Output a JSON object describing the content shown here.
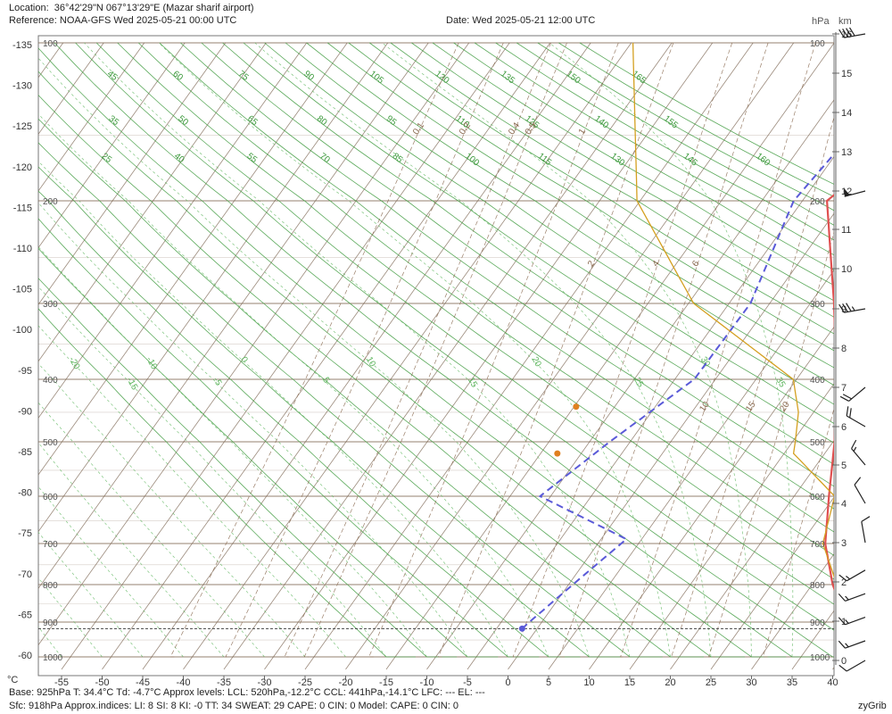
{
  "header": {
    "location_label": "Location:",
    "location_value": "36°42'29\"N  067°13'29\"E (Mazar sharif airport)",
    "reference_label": "Reference:",
    "reference_value": "NOAA-GFS Wed 2025-05-21 00:00 UTC",
    "date_text": "Date: Wed 2025-05-21 12:00 UTC",
    "unit_hpa": "hPa",
    "unit_km": "km"
  },
  "footer": {
    "line1": "Base: 925hPa  T: 34.4°C  Td: -4.7°C     Approx levels:  LCL: 520hPa,-12.2°C   CCL: 441hPa,-14.1°C   LFC: ---    EL: ---",
    "line2": "Sfc: 918hPa        Approx.indices:  LI: 8   SI: 8   KI: -0   TT: 34   SWEAT: 29    CAPE: 0  CIN: 0          Model: CAPE: 0 CIN: 0",
    "brand": "zyGrib",
    "x_unit": "°C"
  },
  "colors": {
    "temperature": "#e05050",
    "dewpoint": "#5a5ad8",
    "parcel": "#d4a020",
    "dry_adiabat": "#3f9b3f",
    "moist_adiabat": "#5fb65f",
    "isotherm": "#7a6450",
    "mixing_ratio": "#8a6a50",
    "isobar": "#8a7560",
    "marker": "#e08020"
  },
  "chart_data": {
    "type": "line",
    "title": "",
    "xlabel": "°C",
    "ylabel": "hPa",
    "x_ticks": [
      -55,
      -50,
      -45,
      -40,
      -35,
      -30,
      -25,
      -20,
      -15,
      -10,
      -5,
      0,
      5,
      10,
      15,
      20,
      25,
      30,
      35,
      40
    ],
    "left_axis_ticks": [
      -135,
      -130,
      -125,
      -120,
      -115,
      -110,
      -105,
      -100,
      -95,
      -90,
      -85,
      -80,
      -75,
      -70,
      -65,
      -60
    ],
    "pressure_levels": [
      100,
      200,
      300,
      400,
      500,
      600,
      700,
      800,
      900,
      1000
    ],
    "km_ticks": [
      0,
      1,
      2,
      3,
      4,
      5,
      6,
      7,
      8,
      9,
      10,
      11,
      12,
      13,
      14,
      15,
      16
    ],
    "dry_adiabat_labels": [
      -15,
      -10,
      -5,
      0,
      5,
      10,
      15,
      20,
      25,
      30,
      35,
      40,
      45,
      50,
      55,
      60,
      65,
      70,
      75,
      80,
      85,
      90,
      95,
      100,
      105,
      110,
      115,
      120,
      125,
      130,
      135,
      140,
      145,
      150,
      155,
      160,
      165
    ],
    "moist_adiabat_labels": [
      -55,
      -50,
      -45,
      -40,
      -35,
      -30,
      -25,
      -20,
      -15,
      -10,
      -5,
      0,
      5,
      10,
      15,
      20,
      25,
      30,
      35
    ],
    "mixing_ratio_labels": [
      0.1,
      0.2,
      0.4,
      0.5,
      1,
      2,
      4,
      6,
      10,
      15,
      20,
      30
    ],
    "series": [
      {
        "key": "temperature",
        "points": [
          [
            100,
            7.8
          ],
          [
            200,
            -1.7
          ],
          [
            300,
            8.4
          ],
          [
            400,
            15.5
          ],
          [
            500,
            20.9
          ],
          [
            600,
            25.1
          ],
          [
            700,
            28.9
          ],
          [
            800,
            33.5
          ],
          [
            918,
            39.5
          ]
        ]
      },
      {
        "key": "dewpoint",
        "points": [
          [
            100,
            -3.2
          ],
          [
            200,
            -5.8
          ],
          [
            300,
            -1.9
          ],
          [
            400,
            -2.0
          ],
          [
            500,
            -6.8
          ],
          [
            600,
            -10.5
          ],
          [
            690,
            4.0
          ],
          [
            900,
            -0.5
          ],
          [
            918,
            -0.8
          ]
        ]
      },
      {
        "key": "parcel",
        "points": [
          [
            100,
            -39.8
          ],
          [
            200,
            -25.1
          ],
          [
            300,
            -8.9
          ],
          [
            400,
            10.2
          ],
          [
            450,
            13.8
          ],
          [
            520,
            16.9
          ],
          [
            600,
            25.8
          ],
          [
            700,
            28.6
          ],
          [
            918,
            39.6
          ]
        ]
      }
    ],
    "markers": [
      {
        "name": "CCL",
        "pressure": 441,
        "t": -14.1
      },
      {
        "name": "LCL",
        "pressure": 520,
        "t": -12.2
      }
    ],
    "surface_pressure": 918,
    "wind_barbs": [
      {
        "km": 16,
        "dir": 260,
        "kt": 40
      },
      {
        "km": 12,
        "dir": 255,
        "kt": 50
      },
      {
        "km": 9,
        "dir": 260,
        "kt": 35
      },
      {
        "km": 7,
        "dir": 230,
        "kt": 20
      },
      {
        "km": 6,
        "dir": 300,
        "kt": 20
      },
      {
        "km": 5,
        "dir": 320,
        "kt": 15
      },
      {
        "km": 4,
        "dir": 330,
        "kt": 10
      },
      {
        "km": 3,
        "dir": 350,
        "kt": 10
      },
      {
        "km": 2.3,
        "dir": 240,
        "kt": 15
      },
      {
        "km": 1.7,
        "dir": 250,
        "kt": 15
      },
      {
        "km": 1.1,
        "dir": 250,
        "kt": 15
      },
      {
        "km": 0.5,
        "dir": 250,
        "kt": 15
      },
      {
        "km": 0,
        "dir": 240,
        "kt": 10
      }
    ]
  }
}
